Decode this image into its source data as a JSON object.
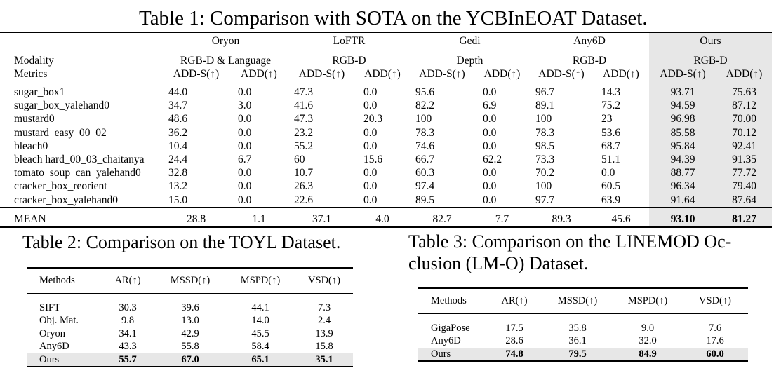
{
  "table1": {
    "caption": "Table 1:  Comparison with SOTA on the YCBInEOAT Dataset.",
    "methods": [
      "Oryon",
      "LoFTR",
      "Gedi",
      "Any6D",
      "Ours"
    ],
    "modalities": [
      "RGB-D & Language",
      "RGB-D",
      "Depth",
      "RGB-D",
      "RGB-D"
    ],
    "row_label_modality": "Modality",
    "row_label_metrics": "Metrics",
    "metric_adds": "ADD-S(↑)",
    "metric_add": "ADD(↑)",
    "rows": [
      {
        "name": "sugar_box1",
        "v": [
          "44.0",
          "0.0",
          "47.3",
          "0.0",
          "95.6",
          "0.0",
          "96.7",
          "14.3",
          "93.71",
          "75.63"
        ]
      },
      {
        "name": "sugar_box_yalehand0",
        "v": [
          "34.7",
          "3.0",
          "41.6",
          "0.0",
          "82.2",
          "6.9",
          "89.1",
          "75.2",
          "94.59",
          "87.12"
        ]
      },
      {
        "name": "mustard0",
        "v": [
          "48.6",
          "0.0",
          "47.3",
          "20.3",
          "100",
          "0.0",
          "100",
          "23",
          "96.98",
          "70.00"
        ]
      },
      {
        "name": "mustard_easy_00_02",
        "v": [
          "36.2",
          "0.0",
          "23.2",
          "0.0",
          "78.3",
          "0.0",
          "78.3",
          "53.6",
          "85.58",
          "70.12"
        ]
      },
      {
        "name": "bleach0",
        "v": [
          "10.4",
          "0.0",
          "55.2",
          "0.0",
          "74.6",
          "0.0",
          "98.5",
          "68.7",
          "95.84",
          "92.41"
        ]
      },
      {
        "name": "bleach hard_00_03_chaitanya",
        "v": [
          "24.4",
          "6.7",
          "60",
          "15.6",
          "66.7",
          "62.2",
          "73.3",
          "51.1",
          "94.39",
          "91.35"
        ]
      },
      {
        "name": "tomato_soup_can_yalehand0",
        "v": [
          "32.8",
          "0.0",
          "10.7",
          "0.0",
          "60.3",
          "0.0",
          "70.2",
          "0.0",
          "88.77",
          "77.72"
        ]
      },
      {
        "name": "cracker_box_reorient",
        "v": [
          "13.2",
          "0.0",
          "26.3",
          "0.0",
          "97.4",
          "0.0",
          "100",
          "60.5",
          "96.34",
          "79.40"
        ]
      },
      {
        "name": "cracker_box_yalehand0",
        "v": [
          "15.0",
          "0.0",
          "22.6",
          "0.0",
          "89.5",
          "0.0",
          "97.7",
          "63.9",
          "91.64",
          "87.64"
        ]
      }
    ],
    "mean": {
      "name": "MEAN",
      "v": [
        "28.8",
        "1.1",
        "37.1",
        "4.0",
        "82.7",
        "7.7",
        "89.3",
        "45.6",
        "93.10",
        "81.27"
      ]
    }
  },
  "table2": {
    "caption": "Table 2: Comparison on the TOYL Dataset.",
    "headers": [
      "Methods",
      "AR(↑)",
      "MSSD(↑)",
      "MSPD(↑)",
      "VSD(↑)"
    ],
    "rows": [
      [
        "SIFT",
        "30.3",
        "39.6",
        "44.1",
        "7.3"
      ],
      [
        "Obj. Mat.",
        "9.8",
        "13.0",
        "14.0",
        "2.4"
      ],
      [
        "Oryon",
        "34.1",
        "42.9",
        "45.5",
        "13.9"
      ],
      [
        "Any6D",
        "43.3",
        "55.8",
        "58.4",
        "15.8"
      ],
      [
        "Ours",
        "55.7",
        "67.0",
        "65.1",
        "35.1"
      ]
    ]
  },
  "table3": {
    "caption_line1": "Table 3: Comparison on the LINEMOD Oc-",
    "caption_line2": "clusion (LM-O) Dataset.",
    "headers": [
      "Methods",
      "AR(↑)",
      "MSSD(↑)",
      "MSPD(↑)",
      "VSD(↑)"
    ],
    "rows": [
      [
        "GigaPose",
        "17.5",
        "35.8",
        "9.0",
        "7.6"
      ],
      [
        "Any6D",
        "28.6",
        "36.1",
        "32.0",
        "17.6"
      ],
      [
        "Ours",
        "74.8",
        "79.5",
        "84.9",
        "60.0"
      ]
    ]
  }
}
